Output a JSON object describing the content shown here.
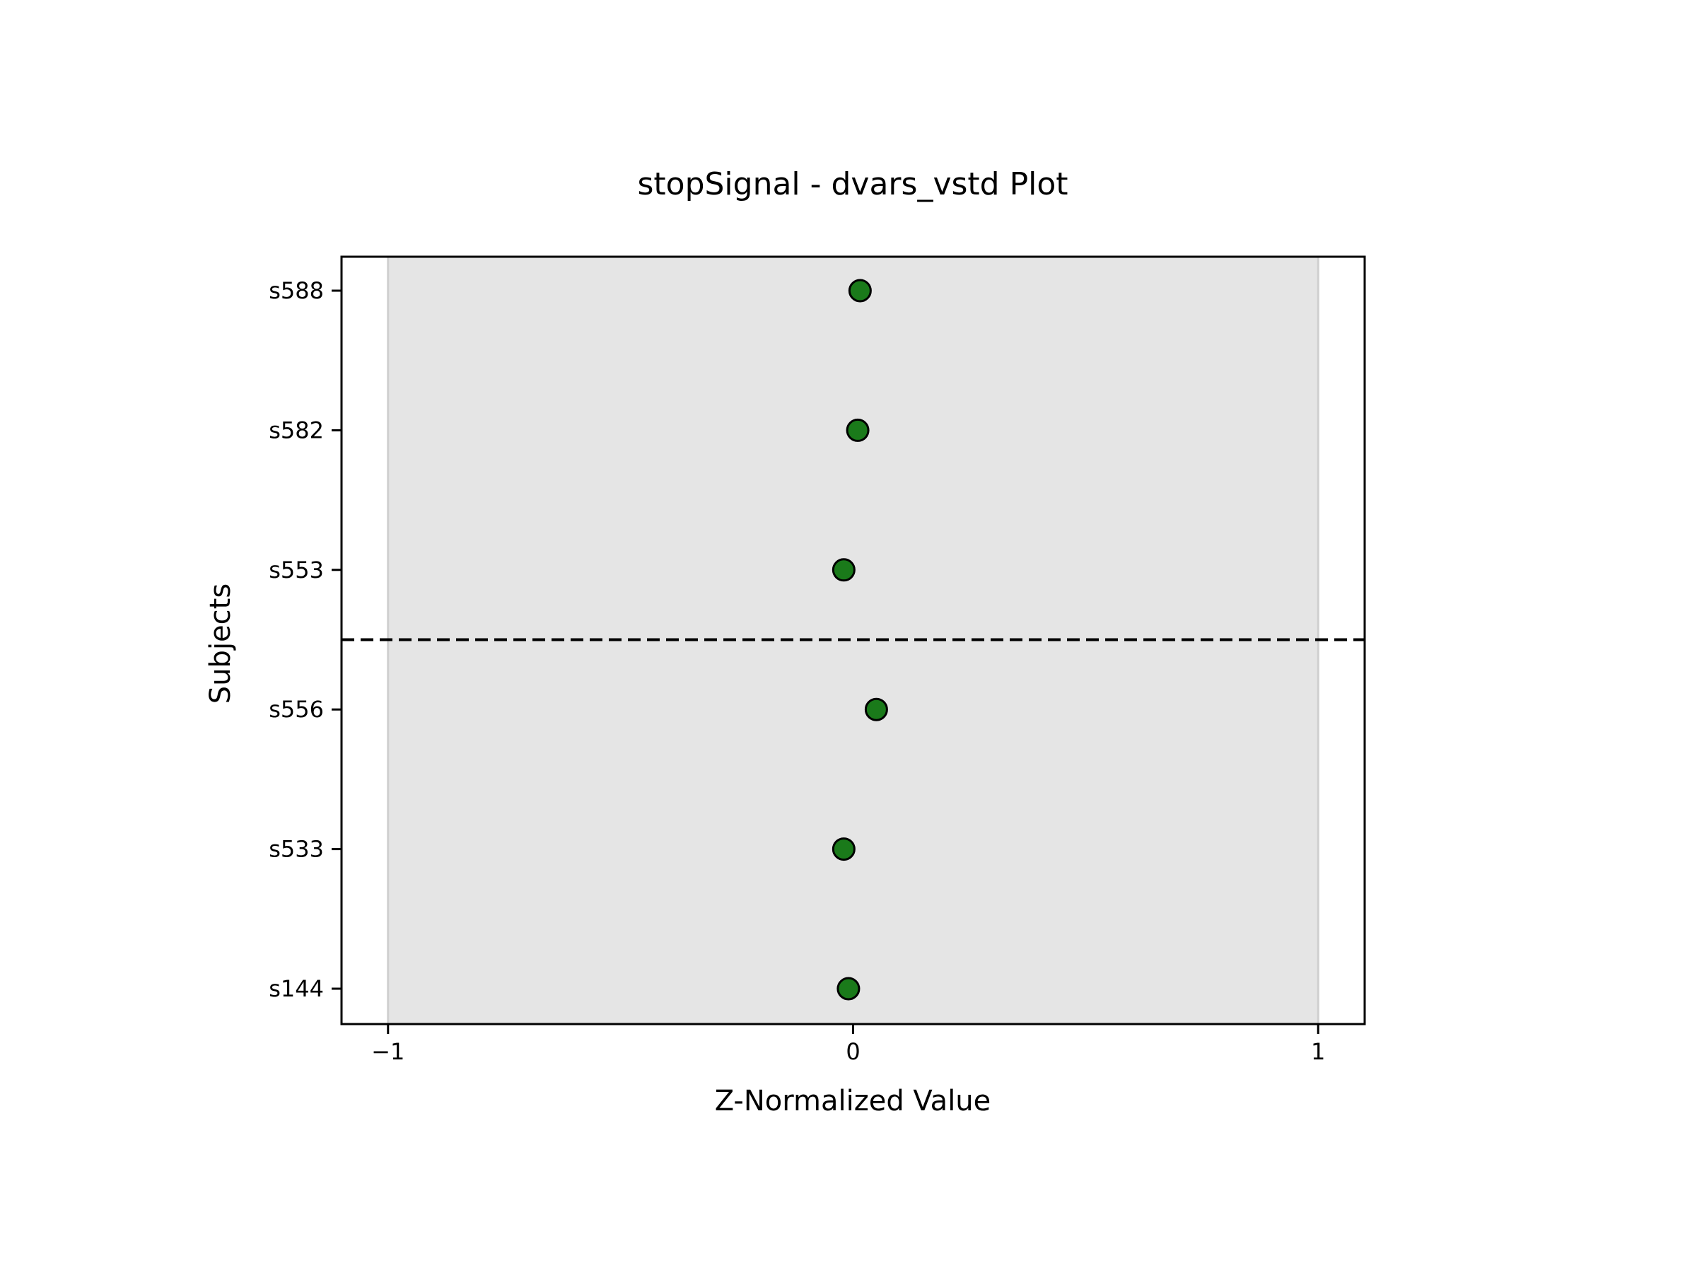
{
  "chart_data": {
    "type": "scatter",
    "title": "stopSignal - dvars_vstd Plot",
    "xlabel": "Z-Normalized Value",
    "ylabel": "Subjects",
    "xlim": [
      -1.1,
      1.1
    ],
    "x_ticks": [
      -1,
      0,
      1
    ],
    "x_tick_labels": [
      "−1",
      "0",
      "1"
    ],
    "categories": [
      "s144",
      "s533",
      "s556",
      "s553",
      "s582",
      "s588"
    ],
    "series": [
      {
        "values": [
          -0.01,
          -0.02,
          0.05,
          -0.02,
          0.01,
          0.015
        ]
      }
    ],
    "shaded_band": {
      "x_start": -1,
      "x_end": 1
    },
    "divider_between": [
      "s556",
      "s553"
    ],
    "grid": false,
    "colors": {
      "marker_fill": "#1a7a1a",
      "marker_edge": "#000000",
      "band_fill": "#e5e5e5",
      "band_edge": "#cfcfcf",
      "divider": "#000000",
      "axes": "#000000"
    }
  }
}
